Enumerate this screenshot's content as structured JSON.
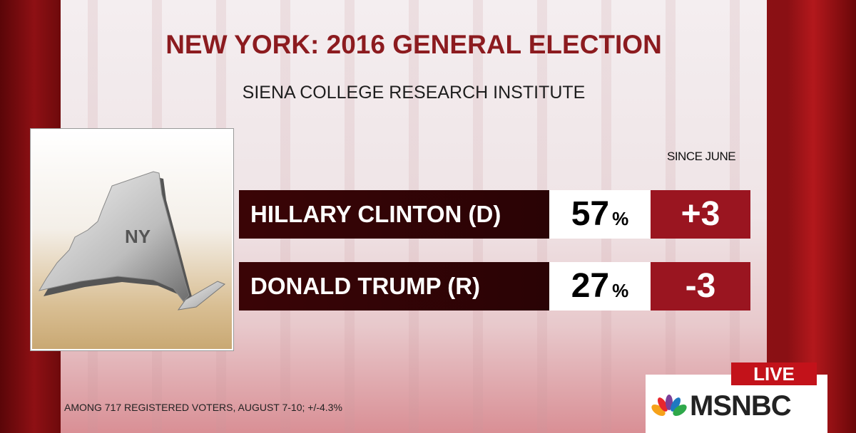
{
  "header": {
    "title": "NEW YORK: 2016 GENERAL ELECTION",
    "subtitle": "SIENA COLLEGE RESEARCH INSTITUTE"
  },
  "map": {
    "label": "NY"
  },
  "table": {
    "change_header": "SINCE JUNE",
    "rows": [
      {
        "name": "HILLARY CLINTON (D)",
        "share": "57",
        "unit": "%",
        "change": "+3"
      },
      {
        "name": "DONALD TRUMP (R)",
        "share": "27",
        "unit": "%",
        "change": "-3"
      }
    ]
  },
  "footnote": "AMONG 717 REGISTERED VOTERS, AUGUST 7-10; +/-4.3%",
  "broadcast": {
    "live": "LIVE",
    "network": "MSNBC"
  }
}
